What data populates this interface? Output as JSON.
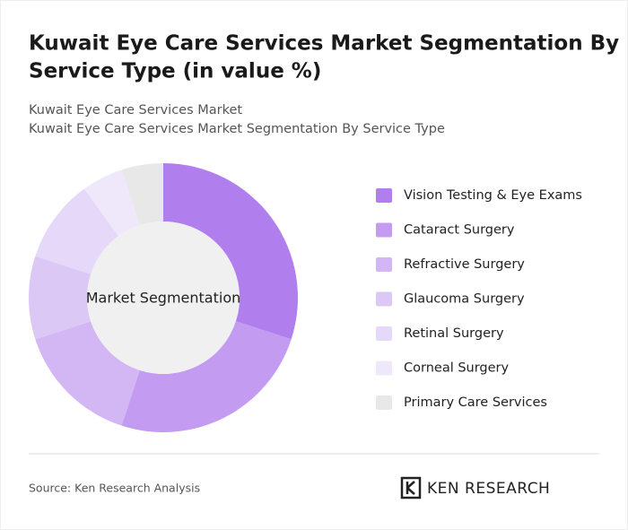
{
  "chart_data": {
    "type": "donut",
    "title": "Kuwait Eye Care Services Market Segmentation By Service Type (in value %)",
    "title_lines": [
      "Kuwait Eye Care Services Market Segmentation By",
      "Service Type (in value %)"
    ],
    "subtitles": [
      "Kuwait Eye Care Services Market",
      "Kuwait Eye Care Services Market Segmentation By Service Type"
    ],
    "center_label": "Market Segmentation",
    "categories": [
      "Vision Testing & Eye Exams",
      "Cataract Surgery",
      "Refractive Surgery",
      "Glaucoma Surgery",
      "Retinal Surgery",
      "Corneal Surgery",
      "Primary Care Services"
    ],
    "values": [
      30,
      25,
      15,
      10,
      10,
      5,
      5
    ],
    "colors": [
      "#b07fed",
      "#c39bf0",
      "#d3b6f4",
      "#dcc8f5",
      "#e6d8f8",
      "#efe8fa",
      "#e8e8e8"
    ],
    "source": "Source: Ken Research Analysis",
    "logo": "KEN RESEARCH"
  }
}
